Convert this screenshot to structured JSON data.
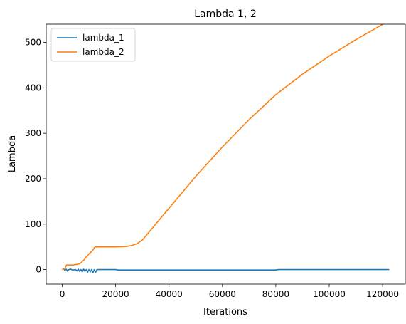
{
  "chart_data": {
    "type": "line",
    "title": "Lambda 1, 2",
    "xlabel": "Iterations",
    "ylabel": "Lambda",
    "xlim": [
      -6000,
      128500
    ],
    "ylim": [
      -32,
      540
    ],
    "xticks": [
      0,
      20000,
      40000,
      60000,
      80000,
      100000,
      120000
    ],
    "yticks": [
      0,
      100,
      200,
      300,
      400,
      500
    ],
    "grid": false,
    "legend_position": "top-left",
    "series": [
      {
        "name": "lambda_1",
        "color": "#1f77b4",
        "x": [
          0,
          500,
          1000,
          1500,
          2000,
          2500,
          3000,
          4000,
          5000,
          5500,
          6000,
          6500,
          7000,
          7500,
          8000,
          8500,
          9000,
          9500,
          10000,
          10500,
          11000,
          11500,
          12000,
          12500,
          13000,
          15000,
          20000,
          21000,
          30000,
          40000,
          50000,
          60000,
          70000,
          80000,
          81000,
          90000,
          100000,
          110000,
          122500
        ],
        "y": [
          0,
          2,
          -2,
          1,
          -4,
          0,
          1,
          -1,
          0,
          -3,
          1,
          -4,
          0,
          -5,
          1,
          -4,
          0,
          -6,
          0,
          -5,
          0,
          -7,
          0,
          -6,
          0,
          0,
          0,
          -1,
          -1,
          -1,
          -1,
          -1,
          -1,
          -1,
          0,
          0,
          0,
          0,
          0
        ]
      },
      {
        "name": "lambda_2",
        "color": "#ff7f0e",
        "x": [
          0,
          1000,
          1600,
          2000,
          3000,
          4000,
          5000,
          6000,
          6500,
          7000,
          7500,
          8000,
          8500,
          9000,
          9500,
          10000,
          10500,
          11000,
          11500,
          12000,
          12500,
          13000,
          15000,
          20000,
          24000,
          26000,
          28000,
          30000,
          35000,
          40000,
          50000,
          60000,
          70000,
          80000,
          90000,
          100000,
          110000,
          122500
        ],
        "y": [
          0,
          2,
          10,
          10,
          10,
          10,
          11,
          12,
          13,
          15,
          18,
          20,
          24,
          28,
          30,
          35,
          37,
          40,
          43,
          48,
          50,
          50,
          50,
          50,
          51,
          53,
          57,
          65,
          100,
          135,
          205,
          270,
          330,
          385,
          430,
          470,
          506,
          548
        ]
      }
    ]
  }
}
